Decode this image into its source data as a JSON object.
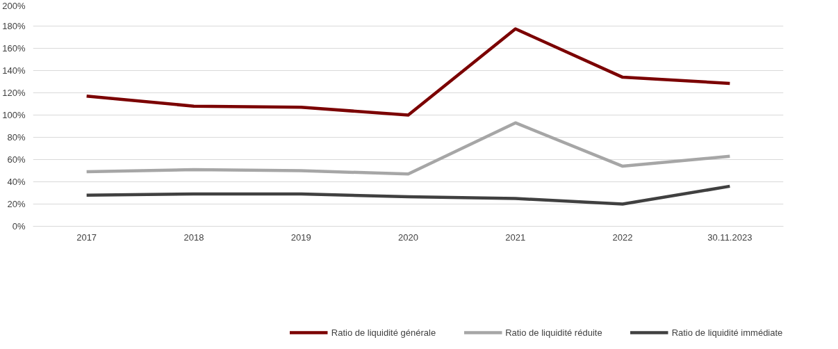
{
  "chart_data": {
    "type": "line",
    "categories": [
      "2017",
      "2018",
      "2019",
      "2020",
      "2021",
      "2022",
      "30.11.2023"
    ],
    "series": [
      {
        "name": "Ratio de liquidité générale",
        "color": "#7b0000",
        "values": [
          117,
          108,
          107,
          100,
          177.5,
          134,
          128.5
        ]
      },
      {
        "name": "Ratio de liquidité réduite",
        "color": "#a6a6a6",
        "values": [
          49,
          51,
          50,
          47,
          93,
          54,
          63
        ]
      },
      {
        "name": "Ratio de liquidité immédiate",
        "color": "#404040",
        "values": [
          28,
          29,
          29,
          26.5,
          25,
          20,
          36
        ]
      }
    ],
    "ylim": [
      0,
      200
    ],
    "yticks": [
      {
        "value": 0,
        "label": "0%"
      },
      {
        "value": 20,
        "label": "20%"
      },
      {
        "value": 40,
        "label": "40%"
      },
      {
        "value": 60,
        "label": "60%"
      },
      {
        "value": 80,
        "label": "80%"
      },
      {
        "value": 100,
        "label": "100%"
      },
      {
        "value": 120,
        "label": "120%"
      },
      {
        "value": 140,
        "label": "140%"
      },
      {
        "value": 160,
        "label": "160%"
      },
      {
        "value": 180,
        "label": "180%"
      },
      {
        "value": 200,
        "label": "200%"
      }
    ],
    "grid": "y",
    "legend": "bottom",
    "marker": "none",
    "line_style": "solid"
  }
}
